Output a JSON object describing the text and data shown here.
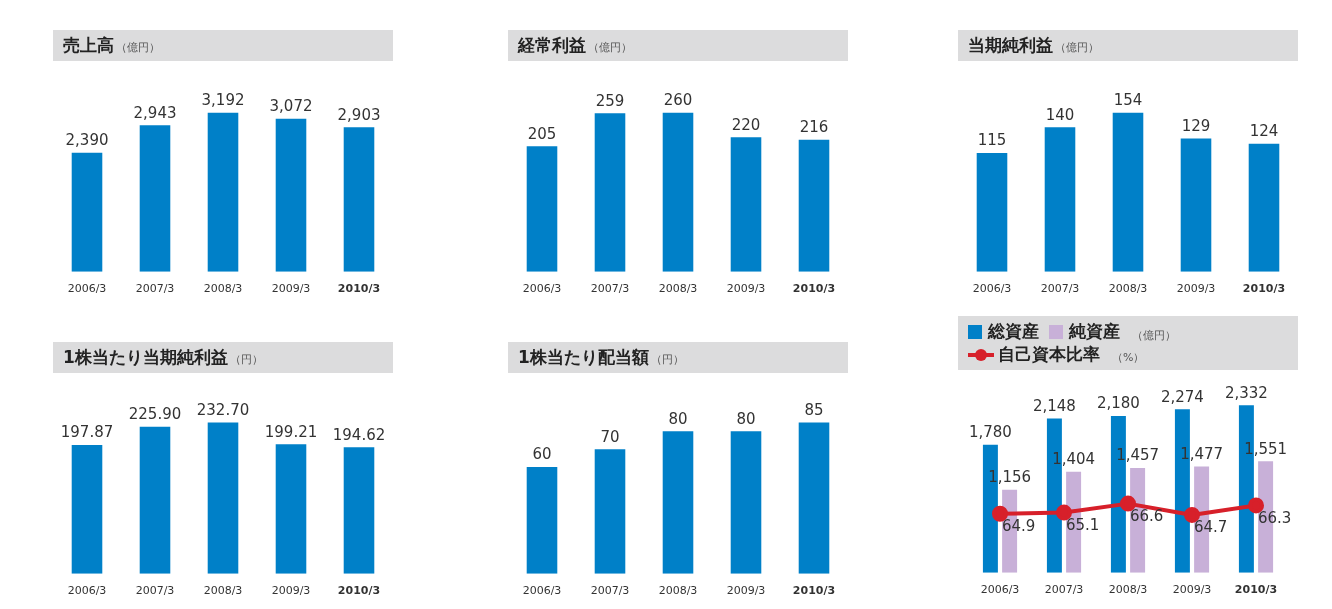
{
  "chart_data": [
    {
      "type": "bar",
      "title": "売上高",
      "subtitle": "（億円）",
      "categories": [
        "2006/3",
        "2007/3",
        "2008/3",
        "2009/3",
        "2010/3"
      ],
      "series": [
        {
          "color": "#0080c8",
          "values": [
            2390,
            2943,
            3192,
            3072,
            2903
          ],
          "value_labels": [
            "2,390",
            "2,943",
            "3,192",
            "3,072",
            "2,903"
          ]
        }
      ]
    },
    {
      "type": "bar",
      "title": "経常利益",
      "subtitle": "（億円）",
      "categories": [
        "2006/3",
        "2007/3",
        "2008/3",
        "2009/3",
        "2010/3"
      ],
      "data_labels": true,
      "series": [
        {
          "color": "#0080c8",
          "values": [
            205,
            259,
            260,
            220,
            216
          ]
        }
      ]
    },
    {
      "type": "bar",
      "title": "当期純利益",
      "subtitle": "（億円）",
      "categories": [
        "2006/3",
        "2007/3",
        "2008/3",
        "2009/3",
        "2010/3"
      ],
      "data_labels": true,
      "series": [
        {
          "color": "#0080c8",
          "values": [
            115,
            140,
            154,
            129,
            124
          ]
        }
      ]
    },
    {
      "type": "bar",
      "title": "1株当たり当期純利益",
      "subtitle": "（円）",
      "categories": [
        "2006/3",
        "2007/3",
        "2008/3",
        "2009/3",
        "2010/3"
      ],
      "series": [
        {
          "color": "#0080c8",
          "values": [
            197.87,
            225.9,
            232.7,
            199.21,
            194.62
          ],
          "value_labels": [
            "197.87",
            "225.90",
            "232.70",
            "199.21",
            "194.62"
          ]
        }
      ]
    },
    {
      "type": "bar",
      "title": "1株当たり配当額",
      "subtitle": "（円）",
      "categories": [
        "2006/3",
        "2007/3",
        "2008/3",
        "2009/3",
        "2010/3"
      ],
      "data_labels": true,
      "series": [
        {
          "color": "#0080c8",
          "values": [
            60,
            70,
            80,
            80,
            85
          ]
        }
      ]
    },
    {
      "type": "bar",
      "subtitle": "（億円）",
      "y2label": "（%）",
      "legend": "top",
      "categories": [
        "2006/3",
        "2007/3",
        "2008/3",
        "2009/3",
        "2010/3"
      ],
      "marker": "circle",
      "series": [
        {
          "name": "総資産",
          "color": "#0080c8",
          "values": [
            1780,
            2148,
            2180,
            2274,
            2332
          ],
          "value_labels": [
            "1,780",
            "2,148",
            "2,180",
            "2,274",
            "2,332"
          ]
        },
        {
          "name": "純資産",
          "color": "#c8b0d8",
          "values": [
            1156,
            1404,
            1457,
            1477,
            1551
          ],
          "value_labels": [
            "1,156",
            "1,404",
            "1,457",
            "1,477",
            "1,551"
          ]
        },
        {
          "name": "自己資本比率",
          "type": "line",
          "axis": "y2",
          "color": "#d7202a",
          "values": [
            64.9,
            65.1,
            66.6,
            64.7,
            66.3
          ],
          "value_labels": [
            "64.9",
            "65.1",
            "66.6",
            "64.7",
            "66.3"
          ]
        }
      ]
    }
  ]
}
